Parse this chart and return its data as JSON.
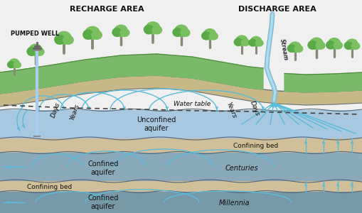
{
  "bg_color": "#f0f0f0",
  "title_left": "RECHARGE AREA",
  "title_right": "DISCHARGE AREA",
  "stream_label": "Stream",
  "pumped_well_label": "PUMPED WELL",
  "water_table_label": "Water table",
  "ground_green": "#7ab86a",
  "ground_green2": "#5a9a4a",
  "ground_tan": "#c8b888",
  "ground_tan2": "#b8a878",
  "water_line_color": "#5abcd8",
  "unconfined_color": "#a8c8e0",
  "confined1_color": "#8aaabb",
  "confined2_color": "#7898a8",
  "confining_color": "#d0bf98",
  "confining_dark": "#b8a880",
  "stream_color": "#88bbd8",
  "well_color": "#888888",
  "text_dark": "#222222",
  "layer_line_color": "#556677"
}
